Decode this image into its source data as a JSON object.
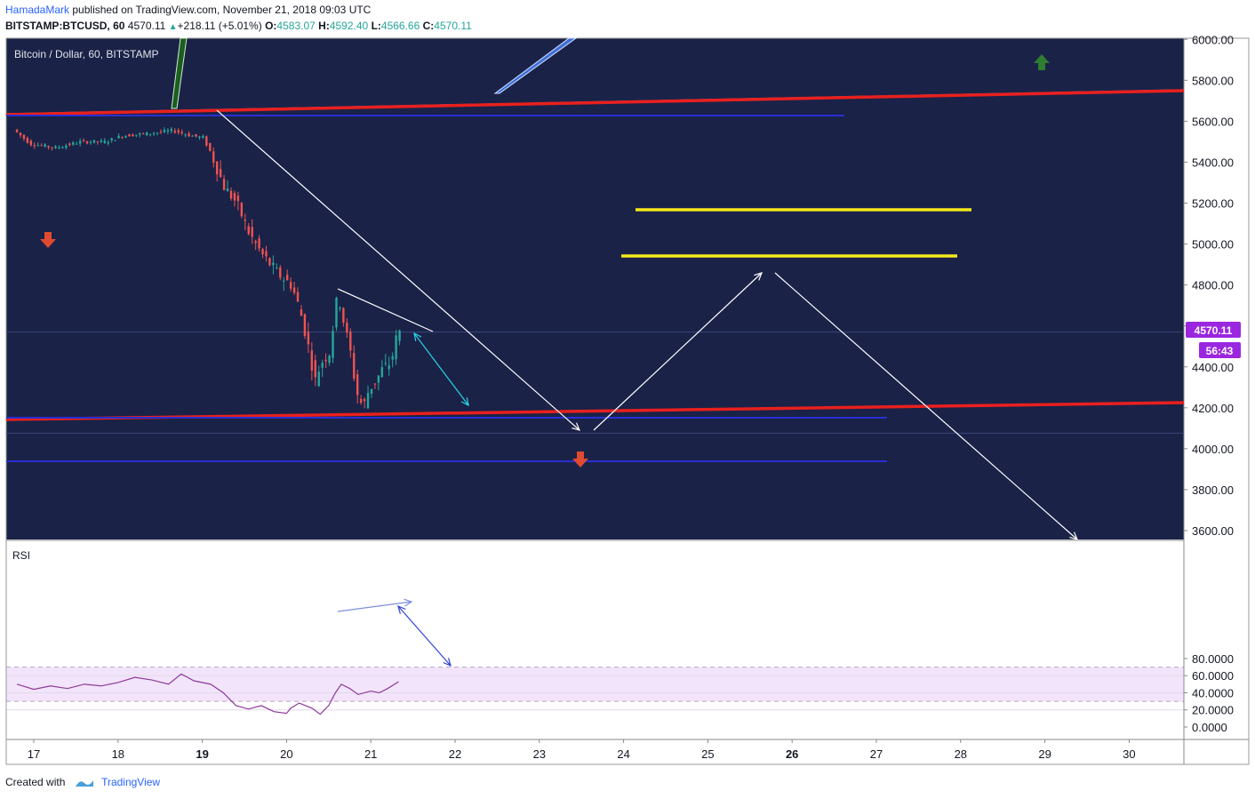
{
  "header": {
    "author": "HamadaMark",
    "published": "published on TradingView.com, November 21, 2018 09:03 UTC",
    "symbol": "BITSTAMP:BTCUSD, 60",
    "last": "4570.11",
    "change": "+218.11 (+5.01%)",
    "o_label": "O:",
    "o": "4583.07",
    "h_label": "H:",
    "h": "4592.40",
    "l_label": "L:",
    "l": "4566.66",
    "c_label": "C:",
    "c": "4570.11"
  },
  "footer": {
    "created": "Created with",
    "brand": "TradingView"
  },
  "colors": {
    "pane_bg": "#1a2247",
    "red_line": "#e8201e",
    "yellow": "#f5e81a",
    "white": "#ffffff",
    "cyan": "#2bd3e5",
    "rsi_line": "#8e3a9a",
    "rsi_band": "#f2e4fa",
    "price_badge": "#9b26e0",
    "up": "#26a69a",
    "down": "#ef5350",
    "arrow_up": "#2e7d32",
    "arrow_down": "#e04a2f"
  },
  "chart_data": [
    {
      "type": "candlestick",
      "title": "Bitcoin / Dollar, 60, BITSTAMP",
      "ylim": [
        3560,
        6020
      ],
      "x_ticks": [
        "17",
        "18",
        "19",
        "20",
        "21",
        "22",
        "23",
        "24",
        "25",
        "26",
        "27",
        "28",
        "29",
        "30"
      ],
      "x_ticks_bold": [
        "19",
        "26"
      ],
      "y_ticks": [
        "3600.00",
        "3800.00",
        "4000.00",
        "4200.00",
        "4400.00",
        "4600.00",
        "4800.00",
        "5000.00",
        "5200.00",
        "5400.00",
        "5600.00",
        "5800.00",
        "6000.00"
      ],
      "price_label": "4570.11",
      "countdown_label": "56:43",
      "price_path": [
        [
          16.8,
          5560
        ],
        [
          17.0,
          5490
        ],
        [
          17.3,
          5470
        ],
        [
          17.6,
          5500
        ],
        [
          17.9,
          5500
        ],
        [
          18.1,
          5530
        ],
        [
          18.4,
          5540
        ],
        [
          18.7,
          5555
        ],
        [
          18.9,
          5530
        ],
        [
          19.05,
          5520
        ],
        [
          19.15,
          5440
        ],
        [
          19.3,
          5280
        ],
        [
          19.45,
          5200
        ],
        [
          19.6,
          5050
        ],
        [
          19.75,
          4950
        ],
        [
          19.95,
          4850
        ],
        [
          20.1,
          4800
        ],
        [
          20.2,
          4680
        ],
        [
          20.3,
          4500
        ],
        [
          20.38,
          4330
        ],
        [
          20.45,
          4420
        ],
        [
          20.55,
          4470
        ],
        [
          20.65,
          4760
        ],
        [
          20.72,
          4620
        ],
        [
          20.8,
          4470
        ],
        [
          20.87,
          4280
        ],
        [
          20.95,
          4200
        ],
        [
          21.02,
          4290
        ],
        [
          21.1,
          4330
        ],
        [
          21.18,
          4390
        ],
        [
          21.28,
          4420
        ],
        [
          21.36,
          4570
        ]
      ],
      "levels": [
        4570.11,
        4076
      ],
      "annotations": [
        "trendline",
        "trendline",
        "horizontal",
        "horizontal",
        "horizontal",
        "horizontal",
        "arrow",
        "arrow",
        "arrow"
      ]
    },
    {
      "type": "line",
      "title": "RSI",
      "ylim": [
        -3,
        83
      ],
      "y_ticks": [
        "0.0000",
        "20.0000",
        "40.0000",
        "60.0000",
        "80.0000"
      ],
      "bands": [
        30,
        70
      ],
      "series": [
        {
          "values": [
            [
              16.8,
              50
            ],
            [
              17.0,
              44
            ],
            [
              17.2,
              48
            ],
            [
              17.4,
              45
            ],
            [
              17.6,
              50
            ],
            [
              17.8,
              48
            ],
            [
              18.0,
              52
            ],
            [
              18.2,
              58
            ],
            [
              18.4,
              55
            ],
            [
              18.6,
              50
            ],
            [
              18.75,
              62
            ],
            [
              18.9,
              54
            ],
            [
              19.1,
              50
            ],
            [
              19.25,
              40
            ],
            [
              19.4,
              25
            ],
            [
              19.55,
              21
            ],
            [
              19.7,
              25
            ],
            [
              19.85,
              18
            ],
            [
              20.0,
              16
            ],
            [
              20.05,
              22
            ],
            [
              20.15,
              28
            ],
            [
              20.3,
              22
            ],
            [
              20.4,
              15
            ],
            [
              20.5,
              25
            ],
            [
              20.58,
              40
            ],
            [
              20.65,
              50
            ],
            [
              20.75,
              45
            ],
            [
              20.85,
              38
            ],
            [
              21.0,
              42
            ],
            [
              21.1,
              40
            ],
            [
              21.2,
              45
            ],
            [
              21.33,
              53
            ]
          ]
        }
      ]
    }
  ]
}
